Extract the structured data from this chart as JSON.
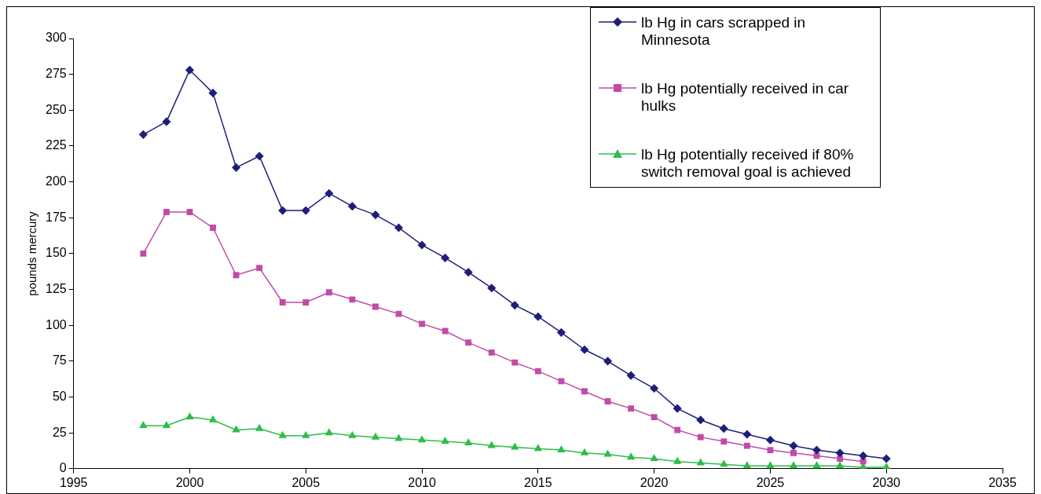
{
  "chart_data": {
    "type": "line",
    "ylabel": "pounds mercury",
    "xlim": [
      1995,
      2035
    ],
    "xticks": [
      1995,
      2000,
      2005,
      2010,
      2015,
      2020,
      2025,
      2030,
      2035
    ],
    "ylim": [
      0,
      300
    ],
    "yticks": [
      0,
      25,
      50,
      75,
      100,
      125,
      150,
      175,
      200,
      225,
      250,
      275,
      300
    ],
    "grid": false,
    "legend": "top right",
    "series": [
      {
        "name": "lb Hg in cars scrapped in Minnesota",
        "color": "#1f1f7a",
        "marker": "diamond",
        "x": [
          1998,
          1999,
          2000,
          2001,
          2002,
          2003,
          2004,
          2005,
          2006,
          2007,
          2008,
          2009,
          2010,
          2011,
          2012,
          2013,
          2014,
          2015,
          2016,
          2017,
          2018,
          2019,
          2020,
          2021,
          2022,
          2023,
          2024,
          2025,
          2026,
          2027,
          2028,
          2029,
          2030
        ],
        "values": [
          233,
          242,
          278,
          262,
          210,
          218,
          180,
          180,
          192,
          183,
          177,
          168,
          156,
          147,
          137,
          126,
          114,
          106,
          95,
          83,
          75,
          65,
          56,
          42,
          34,
          28,
          24,
          20,
          16,
          13,
          11,
          9,
          7
        ]
      },
      {
        "name": "lb Hg potentially received in car hulks",
        "color": "#c04ca8",
        "marker": "square",
        "x": [
          1998,
          1999,
          2000,
          2001,
          2002,
          2003,
          2004,
          2005,
          2006,
          2007,
          2008,
          2009,
          2010,
          2011,
          2012,
          2013,
          2014,
          2015,
          2016,
          2017,
          2018,
          2019,
          2020,
          2021,
          2022,
          2023,
          2024,
          2025,
          2026,
          2027,
          2028,
          2029
        ],
        "values": [
          150,
          179,
          179,
          168,
          135,
          140,
          116,
          116,
          123,
          118,
          113,
          108,
          101,
          96,
          88,
          81,
          74,
          68,
          61,
          54,
          47,
          42,
          36,
          27,
          22,
          19,
          16,
          13,
          11,
          9,
          7,
          5
        ]
      },
      {
        "name": "lb Hg potentially received if 80% switch removal goal is achieved",
        "color": "#2ebd4a",
        "marker": "triangle",
        "x": [
          1998,
          1999,
          2000,
          2001,
          2002,
          2003,
          2004,
          2005,
          2006,
          2007,
          2008,
          2009,
          2010,
          2011,
          2012,
          2013,
          2014,
          2015,
          2016,
          2017,
          2018,
          2019,
          2020,
          2021,
          2022,
          2023,
          2024,
          2025,
          2026,
          2027,
          2028,
          2029,
          2030
        ],
        "values": [
          30,
          30,
          36,
          34,
          27,
          28,
          23,
          23,
          25,
          23,
          22,
          21,
          20,
          19,
          18,
          16,
          15,
          14,
          13,
          11,
          10,
          8,
          7,
          5,
          4,
          3,
          2,
          2,
          2,
          2,
          2,
          1,
          1
        ]
      }
    ]
  }
}
